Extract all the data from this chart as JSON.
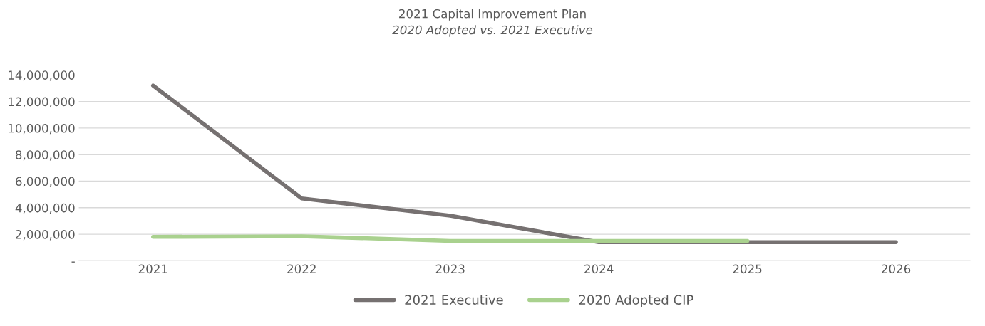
{
  "chart_data": {
    "type": "line",
    "title": "2021 Capital Improvement Plan",
    "subtitle": "2020 Adopted vs. 2021 Executive",
    "categories": [
      "2021",
      "2022",
      "2023",
      "2024",
      "2025",
      "2026"
    ],
    "series": [
      {
        "name": "2021 Executive",
        "color": "#767171",
        "values": [
          13200000,
          4700000,
          3400000,
          1400000,
          1400000,
          1400000
        ]
      },
      {
        "name": "2020 Adopted CIP",
        "color": "#a9d18e",
        "values": [
          1800000,
          1850000,
          1500000,
          1500000,
          1500000,
          null
        ]
      }
    ],
    "ylim": [
      0,
      14000000
    ],
    "yticks": [
      {
        "value": 0,
        "label": "-"
      },
      {
        "value": 2000000,
        "label": "2,000,000"
      },
      {
        "value": 4000000,
        "label": "4,000,000"
      },
      {
        "value": 6000000,
        "label": "6,000,000"
      },
      {
        "value": 8000000,
        "label": "8,000,000"
      },
      {
        "value": 10000000,
        "label": "10,000,000"
      },
      {
        "value": 12000000,
        "label": "12,000,000"
      },
      {
        "value": 14000000,
        "label": "14,000,000"
      }
    ],
    "grid": "y",
    "legend": "bottom",
    "marker": "none",
    "line_style": "solid"
  }
}
